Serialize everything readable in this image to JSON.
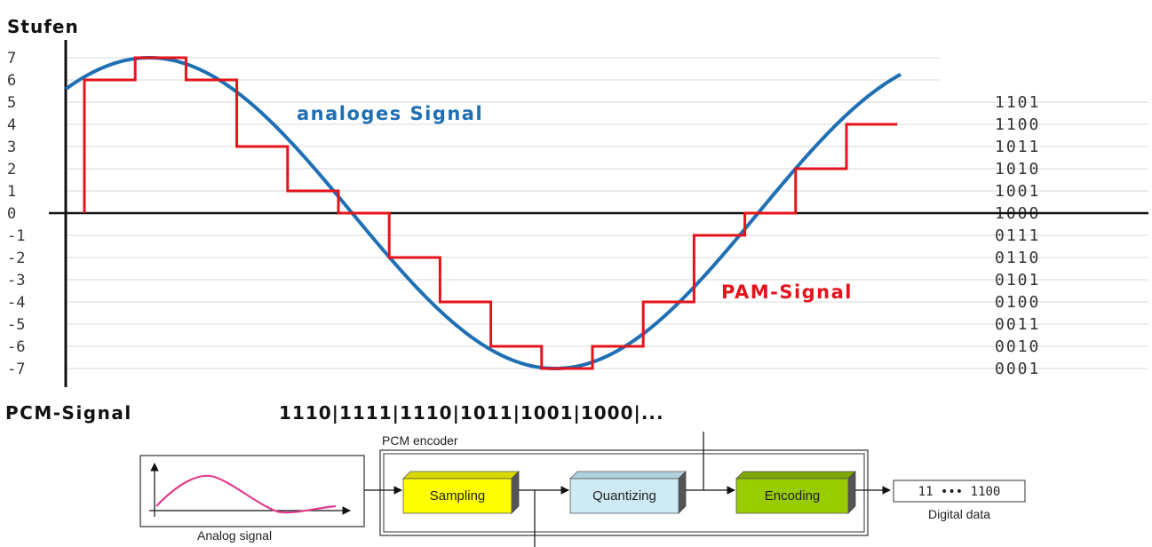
{
  "chart_data": {
    "type": "line",
    "ylabel": "Stufen",
    "y_ticks": [
      "7",
      "6",
      "5",
      "4",
      "3",
      "2",
      "1",
      "0",
      "-1",
      "-2",
      "-3",
      "-4",
      "-5",
      "-6",
      "-7"
    ],
    "ylim": [
      -7,
      7
    ],
    "binary_codes": [
      "1101",
      "1100",
      "1011",
      "1010",
      "1001",
      "1000",
      "0111",
      "0110",
      "0101",
      "0100",
      "0011",
      "0010",
      "0001"
    ],
    "series": [
      {
        "name": "analoges Signal",
        "color": "#1f6fb5",
        "style": "sine"
      },
      {
        "name": "PAM-Signal",
        "color": "#e4141b",
        "style": "step",
        "values": [
          6,
          7,
          6,
          3,
          1,
          0,
          -2,
          -4,
          -6,
          -7,
          -6,
          -4,
          -1,
          0,
          2,
          4
        ]
      }
    ],
    "grid": true
  },
  "pcm": {
    "label": "PCM-Signal",
    "sequence": "1110|1111|1110|1011|1001|1000|..."
  },
  "encoder": {
    "title": "PCM encoder",
    "input_label": "Analog signal",
    "blocks": [
      {
        "label": "Sampling",
        "color": "#ffff00"
      },
      {
        "label": "Quantizing",
        "color": "#cdeaf5"
      },
      {
        "label": "Encoding",
        "color": "#99cc00"
      }
    ],
    "output_code": "11 ••• 1100",
    "output_label": "Digital data"
  }
}
